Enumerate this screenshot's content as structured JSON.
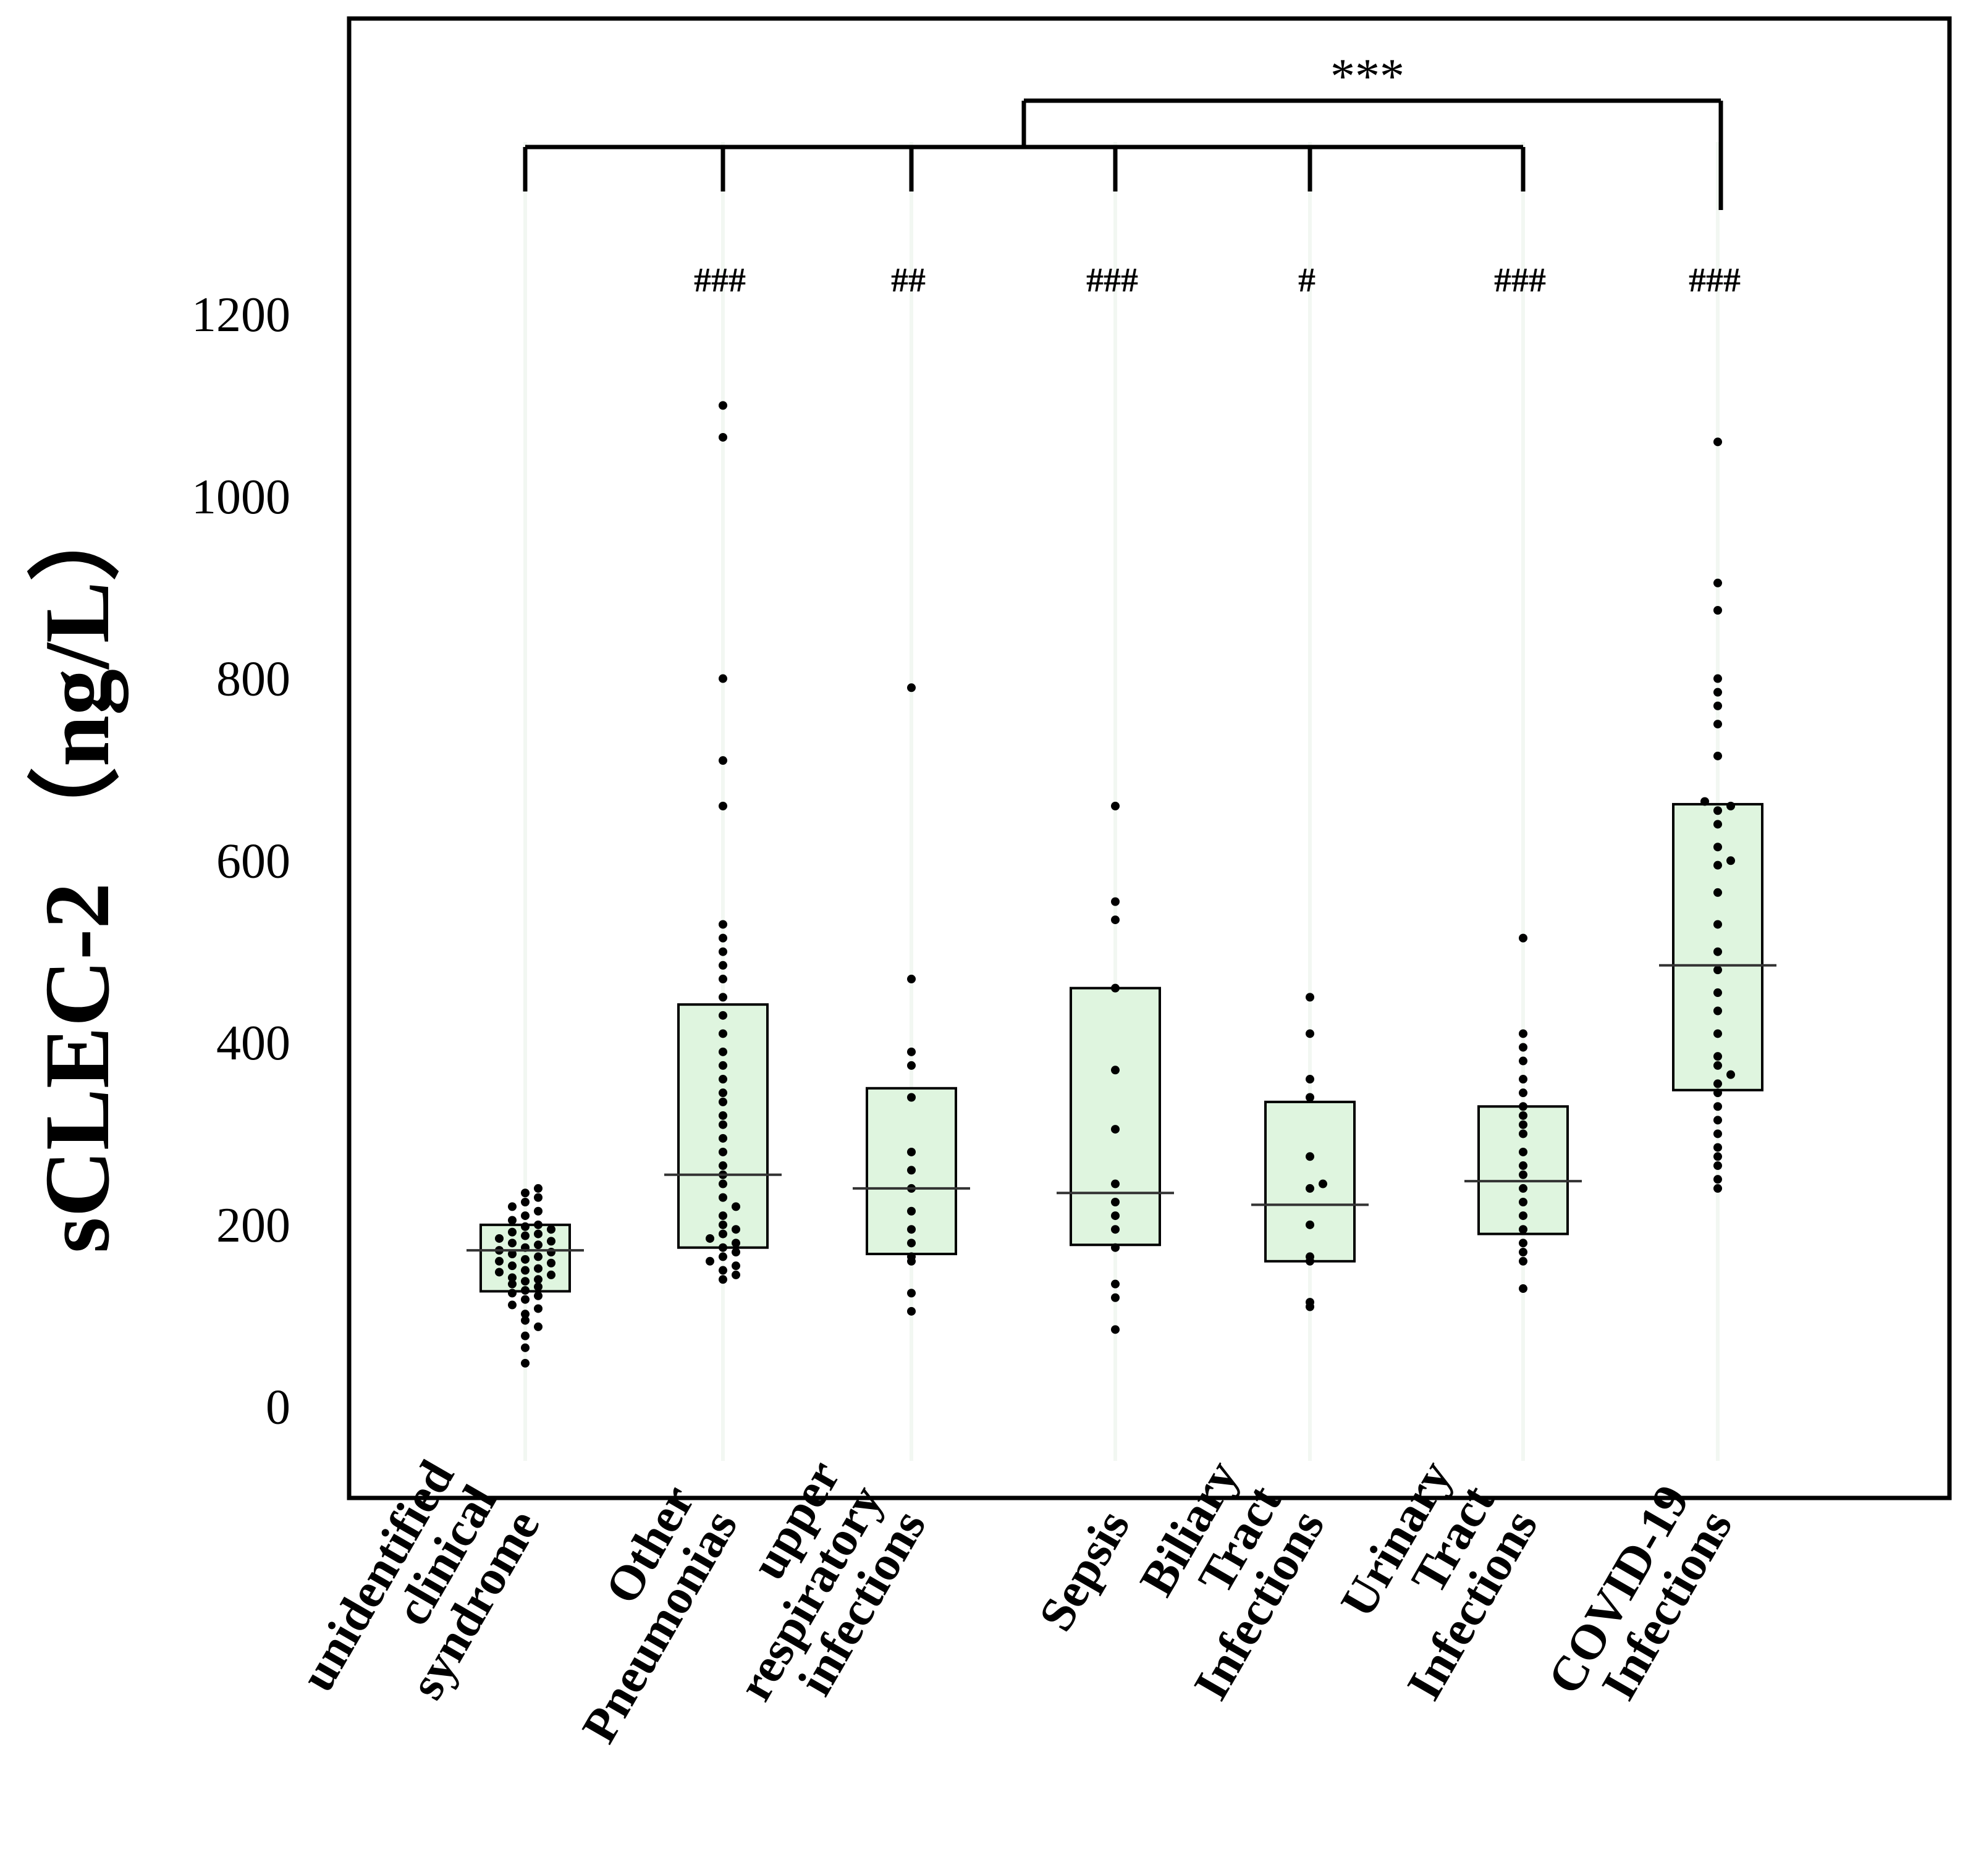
{
  "chart_data": {
    "type": "scatter",
    "ylabel": "sCLEC-2 （ng/L）",
    "ylim": [
      -100,
      1525
    ],
    "yticks": [
      0,
      200,
      400,
      600,
      800,
      1000,
      1200
    ],
    "categories": [
      "unidentified clinical syndrome",
      "Other Pneumonias",
      "upper respiratory infections",
      "Sepsis",
      "Biliary Tract Infections",
      "Urinary Tract Infections",
      "COVID-19 Infections"
    ],
    "category_lines": [
      [
        "unidentified",
        "clinical",
        "syndrome"
      ],
      [
        "Other",
        "Pneumonias"
      ],
      [
        "upper",
        "respiratory",
        "infections"
      ],
      [
        "Sepsis"
      ],
      [
        "Biliary",
        "Tract",
        "Infections"
      ],
      [
        "Urinary",
        "Tract",
        "Infections"
      ],
      [
        "COVID-19",
        "Infections"
      ]
    ],
    "significance": [
      "",
      "###",
      "##",
      "###",
      "#",
      "###",
      "###"
    ],
    "comparison": {
      "label": "***",
      "group_a": [
        0,
        1,
        2,
        3,
        4,
        5
      ],
      "group_b": [
        6
      ]
    },
    "box_color": "#dff5df",
    "box_edge_color": "#000000",
    "point_color": "#000000",
    "groups": [
      {
        "name": "unidentified clinical syndrome",
        "median": 172,
        "q1": 127,
        "q3": 200,
        "points": [
          48,
          65,
          78,
          88,
          95,
          102,
          108,
          112,
          118,
          122,
          125,
          128,
          132,
          135,
          138,
          140,
          142,
          145,
          148,
          150,
          152,
          155,
          158,
          160,
          162,
          165,
          168,
          170,
          172,
          175,
          178,
          180,
          182,
          185,
          188,
          190,
          192,
          195,
          198,
          200,
          205,
          210,
          215,
          220,
          225,
          230,
          235,
          240
        ]
      },
      {
        "name": "Other Pneumonias",
        "median": 255,
        "q1": 175,
        "q3": 442,
        "points": [
          140,
          145,
          150,
          155,
          160,
          165,
          170,
          175,
          180,
          185,
          190,
          195,
          200,
          210,
          220,
          230,
          245,
          255,
          265,
          280,
          295,
          310,
          320,
          335,
          345,
          360,
          375,
          390,
          410,
          430,
          450,
          470,
          485,
          500,
          515,
          530,
          660,
          710,
          800,
          1065,
          1100
        ]
      },
      {
        "name": "upper respiratory infections",
        "median": 240,
        "q1": 168,
        "q3": 350,
        "points": [
          105,
          125,
          160,
          165,
          180,
          195,
          215,
          240,
          260,
          280,
          340,
          375,
          390,
          470,
          790
        ]
      },
      {
        "name": "Sepsis",
        "median": 235,
        "q1": 178,
        "q3": 460,
        "points": [
          85,
          120,
          135,
          175,
          195,
          210,
          225,
          245,
          305,
          370,
          460,
          535,
          555,
          660
        ]
      },
      {
        "name": "Biliary Tract Infections",
        "median": 222,
        "q1": 160,
        "q3": 335,
        "points": [
          110,
          115,
          160,
          165,
          200,
          240,
          245,
          275,
          340,
          360,
          410,
          450
        ]
      },
      {
        "name": "Urinary Tract Infections",
        "median": 248,
        "q1": 190,
        "q3": 330,
        "points": [
          130,
          160,
          170,
          180,
          195,
          210,
          225,
          240,
          255,
          265,
          280,
          300,
          310,
          320,
          330,
          345,
          360,
          380,
          395,
          410,
          515
        ]
      },
      {
        "name": "COVID-19 Infections",
        "median": 485,
        "q1": 348,
        "q3": 662,
        "points": [
          240,
          250,
          265,
          275,
          285,
          300,
          315,
          330,
          345,
          355,
          365,
          375,
          385,
          410,
          435,
          455,
          480,
          500,
          530,
          565,
          595,
          600,
          615,
          640,
          655,
          660,
          665,
          715,
          750,
          770,
          785,
          800,
          875,
          905,
          1060
        ]
      }
    ]
  }
}
